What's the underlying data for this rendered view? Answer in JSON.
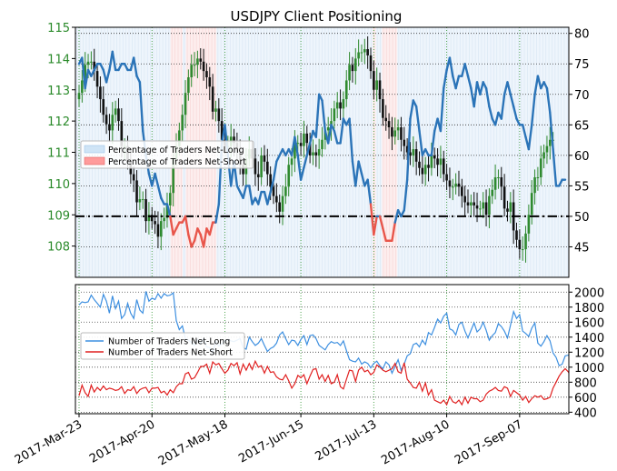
{
  "chart_data": [
    {
      "panel": "top",
      "type": "candlestick + line",
      "title": "USDJPY Client Positioning",
      "x_tick_labels": [
        "2017-Mar-23",
        "2017-Apr-20",
        "2017-May-18",
        "2017-Jun-15",
        "2017-Jul-13",
        "2017-Aug-10",
        "2017-Sep-07"
      ],
      "left_axis": {
        "ticks": [
          108,
          109,
          110,
          111,
          112,
          113,
          114,
          115
        ],
        "range": [
          107.0,
          115.0
        ],
        "color": "#2a8a2a"
      },
      "right_axis": {
        "ticks": [
          45,
          50,
          55,
          60,
          65,
          70,
          75,
          80
        ],
        "range": [
          40.0,
          81.0
        ]
      },
      "reference_line": {
        "value": 50,
        "axis": "right",
        "style": "dash-dot"
      },
      "legend": {
        "placement": "center-left",
        "entries": [
          {
            "label": "Percentage of Traders Net-Long",
            "color": "#cfe4f6"
          },
          {
            "label": "Percentage of Traders Net-Short",
            "color": "#ff9b9b"
          }
        ]
      },
      "series": [
        {
          "name": "Percentage of Traders Net-Long",
          "axis": "right",
          "color_above_50": "#2b74b8",
          "color_below_50": "#e8564b",
          "values": [
            75,
            76,
            71,
            74,
            73,
            74,
            75,
            75,
            74,
            72,
            74,
            77,
            74,
            74,
            75,
            75,
            74,
            74,
            76,
            73,
            72,
            64,
            60,
            57,
            55,
            57,
            55,
            53,
            52,
            52,
            50,
            47,
            48,
            49,
            49,
            50,
            47,
            45,
            46,
            48,
            47,
            45,
            48,
            47,
            49,
            49,
            52,
            62,
            65,
            60,
            55,
            59,
            55,
            54,
            53,
            55,
            55,
            52,
            53,
            52,
            54,
            54,
            52,
            54,
            56,
            59,
            60,
            61,
            60,
            61,
            60,
            63,
            60,
            56,
            58,
            60,
            62,
            64,
            63,
            70,
            69,
            64,
            62,
            65,
            64,
            62,
            62,
            66,
            65,
            66,
            59,
            55,
            59,
            57,
            55,
            56,
            52,
            47,
            50,
            50,
            48,
            46,
            46,
            46,
            49,
            51,
            50,
            51,
            56,
            66,
            69,
            68,
            64,
            60,
            61,
            60,
            60,
            64,
            66,
            64,
            71,
            74,
            76,
            73,
            71,
            73,
            73,
            75,
            73,
            71,
            68,
            72,
            70,
            72,
            71,
            68,
            66,
            65,
            67,
            66,
            70,
            72,
            70,
            68,
            66,
            65,
            65,
            63,
            61,
            65,
            70,
            73,
            71,
            72,
            71,
            67,
            61,
            55,
            55,
            56,
            56
          ],
          "units": "percent"
        },
        {
          "name": "USDJPY",
          "axis": "left",
          "type": "candlestick",
          "up_color": "#2f8a2f",
          "down_color": "#111111",
          "closes": [
            112.9,
            113.3,
            113.8,
            113.9,
            113.9,
            113.6,
            113.1,
            112.7,
            112.2,
            111.9,
            111.7,
            112.2,
            112.4,
            112.0,
            111.2,
            111.2,
            110.7,
            110.3,
            110.1,
            109.4,
            109.5,
            109.5,
            108.8,
            109.0,
            108.8,
            108.7,
            108.3,
            108.8,
            108.9,
            109.3,
            109.7,
            110.8,
            111.2,
            111.7,
            112.2,
            112.9,
            113.4,
            113.8,
            113.8,
            114.0,
            113.9,
            113.6,
            113.4,
            113.1,
            112.3,
            112.4,
            112.0,
            111.4,
            111.2,
            111.2,
            111.5,
            111.3,
            111.0,
            110.6,
            110.3,
            110.8,
            111.1,
            110.8,
            110.3,
            110.2,
            110.9,
            110.7,
            110.3,
            109.9,
            109.6,
            109.4,
            109.1,
            109.6,
            109.9,
            110.6,
            110.8,
            111.3,
            111.3,
            111.2,
            111.6,
            111.3,
            110.9,
            111.0,
            110.9,
            111.1,
            111.4,
            111.7,
            111.8,
            112.0,
            112.4,
            112.6,
            112.4,
            112.7,
            113.3,
            113.8,
            113.6,
            114.0,
            114.2,
            114.2,
            114.3,
            114.1,
            113.6,
            113.0,
            113.3,
            112.7,
            112.1,
            112.0,
            111.8,
            111.5,
            111.7,
            111.8,
            111.4,
            111.2,
            111.0,
            110.9,
            111.1,
            110.7,
            110.5,
            110.3,
            110.6,
            110.5,
            110.9,
            110.8,
            110.6,
            110.8,
            110.3,
            110.1,
            109.9,
            109.9,
            110.0,
            109.9,
            109.6,
            109.4,
            109.3,
            109.4,
            109.3,
            109.2,
            109.2,
            109.4,
            109.0,
            109.6,
            109.8,
            110.2,
            110.2,
            109.9,
            109.2,
            109.1,
            109.4,
            108.5,
            108.2,
            107.9,
            107.9,
            108.4,
            109.0,
            109.7,
            110.2,
            110.2,
            110.8,
            111.0,
            111.2,
            111.4,
            111.4
          ]
        }
      ]
    },
    {
      "panel": "bottom",
      "type": "line",
      "x_tick_labels": [
        "2017-Mar-23",
        "2017-Apr-20",
        "2017-May-18",
        "2017-Jun-15",
        "2017-Jul-13",
        "2017-Aug-10",
        "2017-Sep-07"
      ],
      "y_axis": {
        "ticks": [
          400,
          600,
          800,
          1000,
          1200,
          1400,
          1600,
          1800,
          2000
        ],
        "range": [
          380,
          2100
        ]
      },
      "legend": {
        "placement": "center-left",
        "entries": [
          {
            "label": "Number of Traders Net-Long",
            "color": "#3d8fe0"
          },
          {
            "label": "Number of Traders Net-Short",
            "color": "#e02020"
          }
        ]
      },
      "series": [
        {
          "name": "Number of Traders Net-Long",
          "color": "#3d8fe0",
          "values": [
            1830,
            1870,
            1860,
            1870,
            1960,
            1900,
            1850,
            1800,
            1970,
            1880,
            1720,
            1950,
            1780,
            1880,
            1650,
            1700,
            1850,
            1720,
            1650,
            1900,
            1760,
            1720,
            2010,
            1880,
            1920,
            1900,
            1980,
            1920,
            1980,
            1950,
            1960,
            1990,
            1620,
            1500,
            1550,
            1380,
            1360,
            1330,
            1290,
            1370,
            1310,
            1380,
            1270,
            1260,
            1190,
            1340,
            1280,
            1310,
            1350,
            1370,
            1350,
            1340,
            1360,
            1380,
            1260,
            1240,
            1400,
            1340,
            1290,
            1320,
            1380,
            1290,
            1210,
            1250,
            1270,
            1320,
            1430,
            1470,
            1380,
            1300,
            1360,
            1350,
            1290,
            1370,
            1420,
            1300,
            1420,
            1430,
            1380,
            1290,
            1260,
            1230,
            1300,
            1340,
            1320,
            1330,
            1290,
            1350,
            1220,
            1100,
            1080,
            1070,
            1120,
            1040,
            1070,
            1050,
            990,
            1050,
            1080,
            1020,
            980,
            1070,
            1030,
            920,
            1010,
            1100,
            960,
            1040,
            1150,
            1180,
            1300,
            1320,
            1270,
            1360,
            1300,
            1460,
            1430,
            1530,
            1640,
            1590,
            1680,
            1720,
            1510,
            1490,
            1430,
            1570,
            1600,
            1480,
            1390,
            1490,
            1590,
            1470,
            1510,
            1600,
            1490,
            1360,
            1420,
            1460,
            1580,
            1540,
            1480,
            1390,
            1560,
            1740,
            1650,
            1700,
            1480,
            1450,
            1410,
            1520,
            1590,
            1320,
            1280,
            1340,
            1420,
            1350,
            1190,
            1130,
            1020,
            1040,
            1150,
            1160,
            1140
          ],
          "units": "traders"
        },
        {
          "name": "Number of Traders Net-Short",
          "color": "#e02020",
          "values": [
            620,
            760,
            660,
            610,
            760,
            670,
            730,
            690,
            750,
            700,
            720,
            710,
            690,
            700,
            740,
            650,
            700,
            690,
            740,
            650,
            700,
            720,
            730,
            660,
            720,
            720,
            730,
            660,
            680,
            630,
            700,
            660,
            740,
            780,
            780,
            910,
            930,
            840,
            860,
            930,
            1010,
            1010,
            1040,
            920,
            1070,
            1030,
            1050,
            980,
            920,
            960,
            1050,
            1020,
            1060,
            910,
            1040,
            960,
            1050,
            970,
            1080,
            1000,
            1020,
            920,
            1010,
            930,
            940,
            870,
            840,
            830,
            900,
            820,
            720,
            780,
            890,
            860,
            900,
            780,
            880,
            970,
            980,
            840,
            900,
            810,
            890,
            780,
            800,
            900,
            740,
            710,
            840,
            960,
            950,
            810,
            960,
            1000,
            940,
            960,
            900,
            930,
            1030,
            1000,
            960,
            940,
            960,
            980,
            1050,
            940,
            920,
            1060,
            840,
            790,
            730,
            720,
            800,
            680,
            790,
            630,
            700,
            560,
            540,
            520,
            560,
            500,
            610,
            540,
            520,
            560,
            500,
            600,
            520,
            600,
            580,
            580,
            540,
            560,
            640,
            680,
            700,
            730,
            690,
            680,
            740,
            720,
            610,
            690,
            660,
            630,
            560,
            610,
            530,
            580,
            620,
            600,
            620,
            570,
            580,
            600,
            720,
            800,
            880,
            940,
            980,
            940,
            860,
            800,
            830,
            880,
            880
          ],
          "units": "traders"
        }
      ]
    }
  ]
}
